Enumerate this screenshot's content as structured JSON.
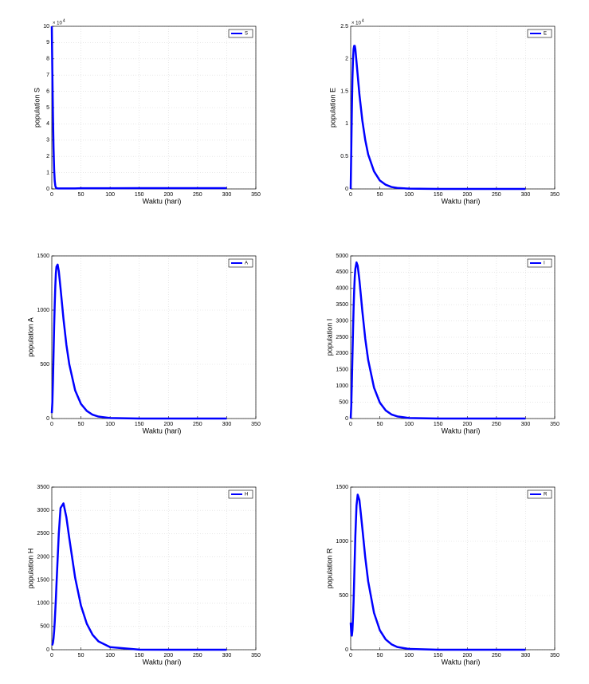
{
  "chart_data": [
    {
      "type": "line",
      "xlabel": "Waktu (hari)",
      "ylabel": "population S",
      "y_exponent": {
        "base": "× 10",
        "power": "4"
      },
      "x": [
        0,
        1,
        2,
        3,
        4,
        5,
        6,
        7,
        8,
        10,
        12,
        15,
        20,
        25,
        30,
        40,
        50,
        60,
        70,
        80,
        100,
        150,
        200,
        250,
        300
      ],
      "series": [
        {
          "name": "S",
          "color": "#0000ff",
          "values": [
            10,
            7,
            4.5,
            2.5,
            1.2,
            0.5,
            0.2,
            0.08,
            0.05,
            0.03,
            0.03,
            0.03,
            0.03,
            0.03,
            0.03,
            0.03,
            0.04,
            0.04,
            0.04,
            0.04,
            0.04,
            0.05,
            0.05,
            0.05,
            0.05
          ]
        }
      ],
      "xlim": [
        0,
        350
      ],
      "xticks": [
        0,
        50,
        100,
        150,
        200,
        250,
        300,
        350
      ],
      "ylim": [
        0,
        10
      ],
      "yticks": [
        0,
        1,
        2,
        3,
        4,
        5,
        6,
        7,
        8,
        9,
        10
      ],
      "grid": true,
      "legend": "upper right"
    },
    {
      "type": "line",
      "xlabel": "Waktu (hari)",
      "ylabel": "population E",
      "y_exponent": {
        "base": "× 10",
        "power": "4"
      },
      "x": [
        0,
        1,
        2,
        3,
        4,
        5,
        6,
        7,
        8,
        10,
        12,
        15,
        20,
        25,
        30,
        40,
        50,
        60,
        70,
        80,
        100,
        150,
        200,
        250,
        300
      ],
      "series": [
        {
          "name": "E",
          "color": "#0000ff",
          "values": [
            0,
            0.6,
            1.2,
            1.7,
            2.0,
            2.15,
            2.2,
            2.2,
            2.15,
            1.95,
            1.75,
            1.45,
            1.05,
            0.75,
            0.53,
            0.27,
            0.13,
            0.065,
            0.03,
            0.015,
            0.004,
            0,
            0,
            0,
            0
          ]
        }
      ],
      "xlim": [
        0,
        350
      ],
      "xticks": [
        0,
        50,
        100,
        150,
        200,
        250,
        300,
        350
      ],
      "ylim": [
        0,
        2.5
      ],
      "yticks": [
        0,
        0.5,
        1,
        1.5,
        2,
        2.5
      ],
      "grid": true,
      "legend": "upper right"
    },
    {
      "type": "line",
      "xlabel": "Waktu (hari)",
      "ylabel": "population A",
      "x": [
        0,
        1,
        2,
        3,
        4,
        5,
        6,
        7,
        8,
        10,
        12,
        15,
        20,
        25,
        30,
        40,
        50,
        60,
        70,
        80,
        100,
        150,
        200,
        250,
        300
      ],
      "series": [
        {
          "name": "A",
          "color": "#0000ff",
          "values": [
            50,
            150,
            350,
            600,
            850,
            1050,
            1220,
            1340,
            1400,
            1420,
            1360,
            1200,
            920,
            680,
            500,
            260,
            135,
            70,
            35,
            18,
            5,
            0,
            0,
            0,
            0
          ]
        }
      ],
      "xlim": [
        0,
        350
      ],
      "xticks": [
        0,
        50,
        100,
        150,
        200,
        250,
        300,
        350
      ],
      "ylim": [
        0,
        1500
      ],
      "yticks": [
        0,
        500,
        1000,
        1500
      ],
      "grid": true,
      "legend": "upper right"
    },
    {
      "type": "line",
      "xlabel": "Waktu (hari)",
      "ylabel": "population I",
      "x": [
        0,
        1,
        2,
        3,
        4,
        5,
        6,
        7,
        8,
        10,
        12,
        15,
        20,
        25,
        30,
        40,
        50,
        60,
        70,
        80,
        100,
        150,
        200,
        250,
        300
      ],
      "series": [
        {
          "name": "I",
          "color": "#0000ff",
          "values": [
            0,
            400,
            1100,
            1900,
            2700,
            3400,
            3950,
            4350,
            4600,
            4800,
            4700,
            4250,
            3300,
            2450,
            1800,
            950,
            490,
            250,
            125,
            65,
            15,
            0,
            0,
            0,
            0
          ]
        }
      ],
      "xlim": [
        0,
        350
      ],
      "xticks": [
        0,
        50,
        100,
        150,
        200,
        250,
        300,
        350
      ],
      "ylim": [
        0,
        5000
      ],
      "yticks": [
        0,
        500,
        1000,
        1500,
        2000,
        2500,
        3000,
        3500,
        4000,
        4500,
        5000
      ],
      "grid": true,
      "legend": "upper right"
    },
    {
      "type": "line",
      "xlabel": "Waktu (hari)",
      "ylabel": "population H",
      "x": [
        0,
        1,
        2,
        3,
        4,
        5,
        6,
        7,
        8,
        10,
        12,
        15,
        20,
        25,
        30,
        40,
        50,
        60,
        70,
        80,
        100,
        150,
        200,
        250,
        300
      ],
      "series": [
        {
          "name": "H",
          "color": "#0000ff",
          "values": [
            100,
            110,
            150,
            250,
            400,
            600,
            850,
            1100,
            1400,
            1950,
            2500,
            3050,
            3150,
            2850,
            2400,
            1550,
            950,
            560,
            320,
            180,
            55,
            3,
            0,
            0,
            0
          ]
        }
      ],
      "xlim": [
        0,
        350
      ],
      "xticks": [
        0,
        50,
        100,
        150,
        200,
        250,
        300,
        350
      ],
      "ylim": [
        0,
        3500
      ],
      "yticks": [
        0,
        500,
        1000,
        1500,
        2000,
        2500,
        3000,
        3500
      ],
      "grid": true,
      "legend": "upper right"
    },
    {
      "type": "line",
      "xlabel": "Waktu (hari)",
      "ylabel": "population R",
      "x": [
        0,
        1,
        2,
        3,
        4,
        5,
        6,
        7,
        8,
        10,
        12,
        15,
        20,
        25,
        30,
        40,
        50,
        60,
        70,
        80,
        100,
        150,
        200,
        250,
        300
      ],
      "series": [
        {
          "name": "R",
          "color": "#0000ff",
          "values": [
            250,
            150,
            130,
            180,
            300,
            450,
            650,
            850,
            1050,
            1330,
            1430,
            1380,
            1120,
            850,
            630,
            340,
            180,
            95,
            50,
            25,
            7,
            0,
            0,
            0,
            0
          ]
        }
      ],
      "xlim": [
        0,
        350
      ],
      "xticks": [
        0,
        50,
        100,
        150,
        200,
        250,
        300,
        350
      ],
      "ylim": [
        0,
        1500
      ],
      "yticks": [
        0,
        500,
        1000,
        1500
      ],
      "grid": true,
      "legend": "upper right"
    }
  ]
}
